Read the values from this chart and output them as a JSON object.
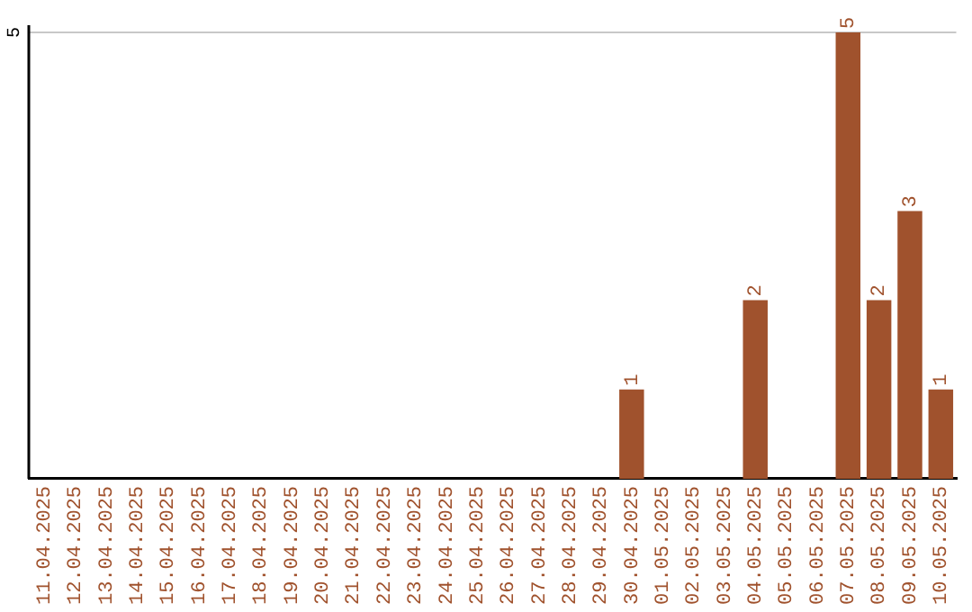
{
  "chart_data": {
    "type": "bar",
    "categories": [
      "11.04.2025",
      "12.04.2025",
      "13.04.2025",
      "14.04.2025",
      "15.04.2025",
      "16.04.2025",
      "17.04.2025",
      "18.04.2025",
      "19.04.2025",
      "20.04.2025",
      "21.04.2025",
      "22.04.2025",
      "23.04.2025",
      "24.04.2025",
      "25.04.2025",
      "26.04.2025",
      "27.04.2025",
      "28.04.2025",
      "29.04.2025",
      "30.04.2025",
      "01.05.2025",
      "02.05.2025",
      "03.05.2025",
      "04.05.2025",
      "05.05.2025",
      "06.05.2025",
      "07.05.2025",
      "08.05.2025",
      "09.05.2025",
      "10.05.2025"
    ],
    "values": [
      null,
      null,
      null,
      null,
      null,
      null,
      null,
      null,
      null,
      null,
      null,
      null,
      null,
      null,
      null,
      null,
      null,
      null,
      null,
      1,
      null,
      null,
      null,
      2,
      null,
      null,
      5,
      2,
      3,
      1
    ],
    "value_labels": [
      null,
      null,
      null,
      null,
      null,
      null,
      null,
      null,
      null,
      null,
      null,
      null,
      null,
      null,
      null,
      null,
      null,
      null,
      null,
      "1",
      null,
      null,
      null,
      "2",
      null,
      null,
      "5",
      "2",
      "3",
      "1"
    ],
    "color": "#a0522d",
    "ylim": [
      0,
      5
    ],
    "ref_lines": [
      {
        "axis": "y",
        "value": 5,
        "label": "5",
        "color": "#c8c8c8"
      }
    ],
    "legend": false
  }
}
